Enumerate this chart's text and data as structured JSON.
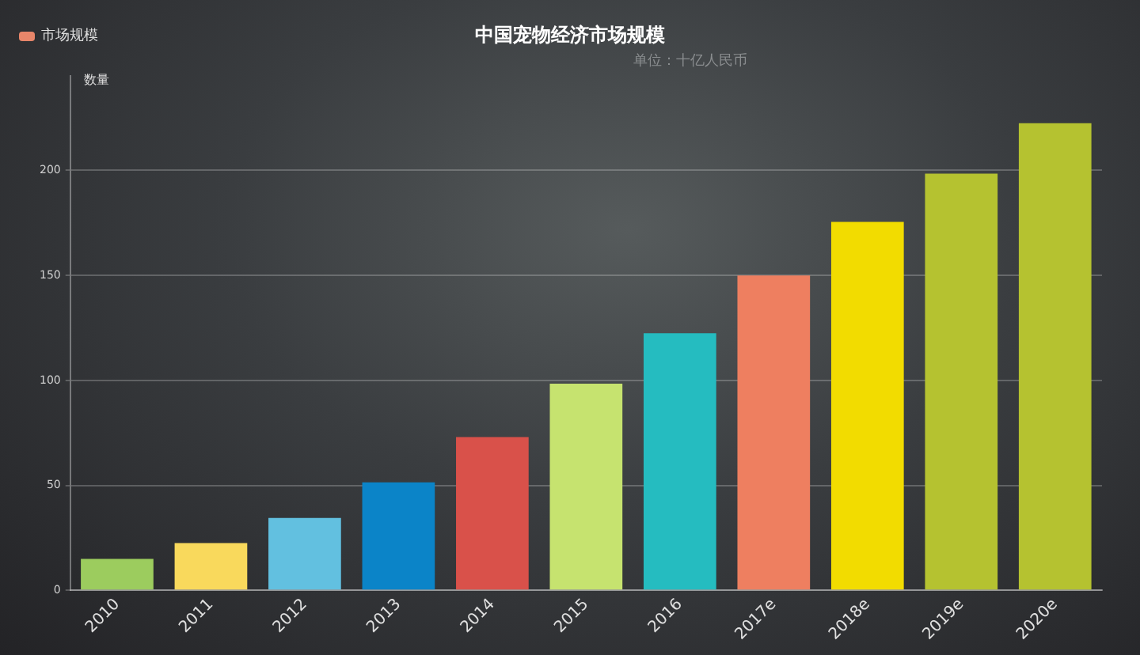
{
  "chart_data": {
    "type": "bar",
    "title": "中国宠物经济市场规模",
    "subtitle": "单位：十亿人民币",
    "ylabel": "数量",
    "categories": [
      "2010",
      "2011",
      "2012",
      "2013",
      "2014",
      "2015",
      "2016",
      "2017e",
      "2018e",
      "2019e",
      "2020e"
    ],
    "series": [
      {
        "name": "市场规模",
        "color": "#e8866a",
        "values": [
          15,
          22.5,
          34.5,
          51.5,
          73,
          98.5,
          122.5,
          150,
          175.5,
          198.5,
          222.5
        ],
        "colors": [
          "#9ccc5e",
          "#f9d95c",
          "#62c0e0",
          "#0b84c8",
          "#d9514a",
          "#c6e36f",
          "#25bcc0",
          "#ee7f60",
          "#f2dc00",
          "#b5c230",
          "#b5c230"
        ]
      }
    ],
    "ylim": [
      0,
      245
    ],
    "yticks": [
      0,
      50,
      100,
      150,
      200
    ],
    "grid": "y",
    "legend": "top left"
  }
}
